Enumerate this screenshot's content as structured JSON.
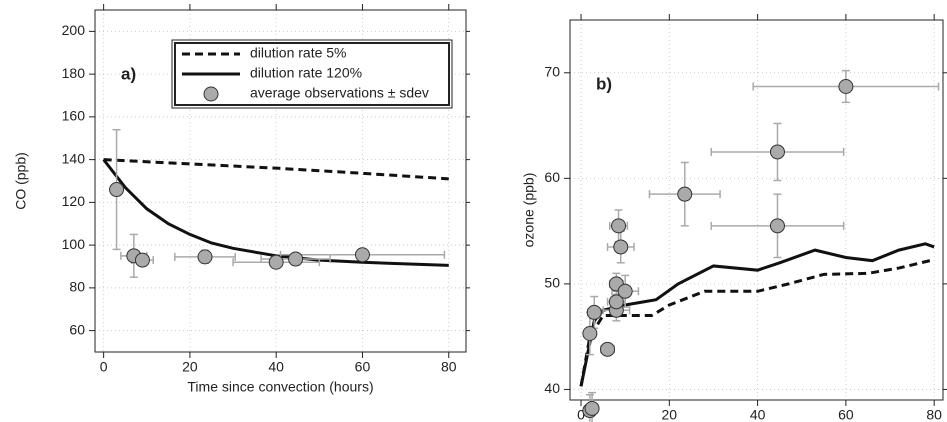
{
  "chart_data": [
    {
      "type": "line",
      "annotation": "a)",
      "x_label": "Time since convection (hours)",
      "y_label": "CO (ppb)",
      "xlim": [
        -2,
        84
      ],
      "ylim": [
        50,
        210
      ],
      "xticks": [
        0,
        20,
        40,
        60,
        80
      ],
      "yticks": [
        60,
        80,
        100,
        120,
        140,
        160,
        180,
        200
      ],
      "grid": true,
      "legend": "top-right",
      "series": [
        {
          "name": "dilution rate 5%",
          "type": "line",
          "style": "dashed",
          "color": "#111",
          "x": [
            0,
            10,
            20,
            30,
            40,
            50,
            60,
            70,
            80
          ],
          "values": [
            140,
            139,
            138,
            137,
            136,
            134.8,
            133.6,
            132.3,
            131
          ]
        },
        {
          "name": "dilution rate 120%",
          "type": "line",
          "style": "solid",
          "color": "#111",
          "x": [
            0,
            5,
            10,
            15,
            20,
            25,
            30,
            40,
            50,
            60,
            70,
            80
          ],
          "values": [
            140,
            127,
            117,
            110,
            105,
            101,
            98.5,
            95,
            93,
            92,
            91.2,
            90.5
          ]
        },
        {
          "name": "average observations ± sdev",
          "type": "scatter",
          "color": "#aaaaaa",
          "x": [
            3,
            7,
            9,
            23.5,
            40,
            44.5,
            60
          ],
          "values": [
            126,
            95,
            93,
            94.5,
            92,
            93.5,
            95.5
          ],
          "xerr": [
            0.5,
            3,
            2.5,
            7,
            10,
            8,
            19
          ],
          "yerr": [
            28,
            10,
            2,
            3,
            2,
            2,
            2
          ]
        }
      ]
    },
    {
      "type": "line",
      "annotation": "b)",
      "x_label": "Time since convection (hours)",
      "y_label": "ozone (ppb)",
      "xlim": [
        -2.5,
        82
      ],
      "ylim": [
        39,
        75
      ],
      "xticks": [
        0,
        20,
        40,
        60,
        80
      ],
      "yticks": [
        40,
        50,
        60,
        70
      ],
      "grid": true,
      "series": [
        {
          "type": "line",
          "style": "dashed",
          "color": "#111",
          "x": [
            0,
            2,
            5,
            10,
            16,
            20,
            28,
            40,
            47,
            55,
            65,
            72,
            80
          ],
          "values": [
            40.3,
            45,
            47,
            47,
            47,
            48,
            49.3,
            49.3,
            50,
            50.9,
            51,
            51.5,
            52.3
          ]
        },
        {
          "type": "line",
          "style": "solid",
          "color": "#111",
          "x": [
            0,
            3,
            5,
            10,
            17,
            22,
            30,
            40,
            45,
            53,
            60,
            66,
            72,
            78,
            80
          ],
          "values": [
            40.3,
            46.5,
            47.5,
            48,
            48.5,
            50,
            51.7,
            51.3,
            52,
            53.2,
            52.5,
            52.2,
            53.2,
            53.8,
            53.5
          ]
        },
        {
          "type": "scatter",
          "color": "#aaaaaa",
          "x": [
            2,
            2.5,
            2,
            3,
            6,
            8,
            8,
            8,
            8.5,
            9,
            10,
            23.5,
            44.5,
            44.5,
            60
          ],
          "values": [
            38,
            38.2,
            45.3,
            47.3,
            43.8,
            47.5,
            48.3,
            50,
            55.5,
            53.5,
            49.3,
            58.5,
            62.5,
            55.5,
            68.7
          ],
          "xerr": [
            0.5,
            0.5,
            1,
            1.5,
            1.5,
            3,
            2,
            1.5,
            2,
            3,
            3,
            8,
            15,
            15,
            21
          ],
          "yerr": [
            1.5,
            1.5,
            2,
            1.5,
            0.5,
            1,
            1,
            1,
            1.5,
            1.5,
            1.5,
            3,
            2.7,
            3,
            1.5
          ]
        }
      ]
    }
  ]
}
